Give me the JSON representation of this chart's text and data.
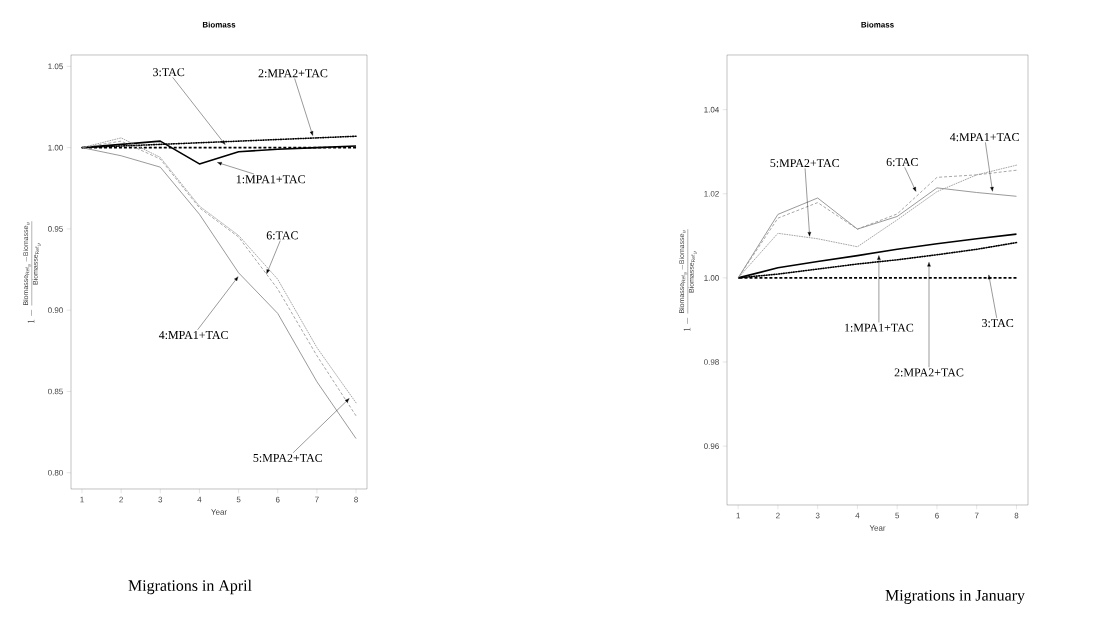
{
  "chart_data": [
    {
      "type": "line",
      "title": "Biomass",
      "xlabel": "Year",
      "ylabel": "1 - \\frac{\\mathrm{Biomasse}_{\\mathrm{Ref}_y} - \\mathrm{Biomasse}_y}{\\mathrm{Biomasse}_{\\mathrm{Ref}_y}}",
      "x": [
        1,
        2,
        3,
        4,
        5,
        6,
        7,
        8
      ],
      "series": [
        {
          "color": "#000000",
          "line_style": "solid",
          "values": [
            1.0,
            1.002,
            1.004,
            0.99,
            0.9975,
            0.999,
            1.0,
            1.001
          ]
        },
        {
          "color": "#000000",
          "line_style": "dotted",
          "values": [
            1.0,
            1.001,
            1.002,
            1.003,
            1.004,
            1.005,
            1.006,
            1.007
          ]
        },
        {
          "color": "#000000",
          "line_style": "dashed",
          "values": [
            1.0,
            1.0,
            1.0,
            1.0,
            1.0,
            1.0,
            1.0,
            1.0
          ]
        },
        {
          "color": "#808080",
          "line_style": "solid",
          "values": [
            1.0,
            0.995,
            0.988,
            0.959,
            0.923,
            0.898,
            0.856,
            0.821
          ]
        },
        {
          "color": "#909090",
          "line_style": "dotted",
          "values": [
            1.0,
            1.006,
            0.994,
            0.964,
            0.946,
            0.919,
            0.877,
            0.843
          ]
        },
        {
          "color": "#909090",
          "line_style": "dashed",
          "values": [
            1.0,
            1.004,
            0.993,
            0.963,
            0.945,
            0.913,
            0.872,
            0.835
          ]
        }
      ],
      "xlim": [
        0.72,
        8.28
      ],
      "ylim": [
        0.79,
        1.057
      ],
      "xticks": [
        1,
        2,
        3,
        4,
        5,
        6,
        7,
        8
      ],
      "yticks": [
        {
          "value": 0.8,
          "label": "0.80"
        },
        0.85,
        {
          "value": 0.9,
          "label": "0.90"
        },
        0.95,
        {
          "value": 1.0,
          "label": "1.00"
        },
        1.05
      ],
      "annotations": [
        {
          "text": "3:TAC",
          "x": 4.67,
          "y": 1.0015
        },
        {
          "text": "2:MPA2+TAC",
          "x": 6.9,
          "y": 1.007
        },
        {
          "text": "1:MPA1+TAC",
          "x": 4.44,
          "y": 0.991
        },
        {
          "text": "6:TAC",
          "x": 5.71,
          "y": 0.922
        },
        {
          "text": "4:MPA1+TAC",
          "x": 5.0,
          "y": 0.921
        },
        {
          "text": "5:MPA2+TAC",
          "x": 7.84,
          "y": 0.846
        },
        "Migrations in April"
      ]
    },
    {
      "type": "line",
      "title": "Biomass",
      "xlabel": "Year",
      "ylabel": "1 - \\frac{\\mathrm{Biomasse}_{\\mathrm{Ref}_y} - \\mathrm{Biomasse}_y}{\\mathrm{Biomasse}_{\\mathrm{Ref}_y}}",
      "x": [
        1,
        2,
        3,
        4,
        5,
        6,
        7,
        8
      ],
      "series": [
        {
          "color": "#000000",
          "line_style": "solid",
          "values": [
            1.0,
            1.0024,
            1.0039,
            1.0053,
            1.0068,
            1.0081,
            1.0093,
            1.0104
          ]
        },
        {
          "color": "#000000",
          "line_style": "dotted",
          "values": [
            1.0,
            1.0009,
            1.0021,
            1.0033,
            1.0043,
            1.0055,
            1.0068,
            1.0084
          ]
        },
        {
          "color": "#000000",
          "line_style": "dashed",
          "values": [
            1.0,
            1.0,
            1.0,
            1.0,
            1.0,
            1.0,
            1.0,
            1.0
          ]
        },
        {
          "color": "#808080",
          "line_style": "solid",
          "values": [
            1.0,
            1.0151,
            1.019,
            1.0116,
            1.0146,
            1.0214,
            1.0203,
            1.0194
          ]
        },
        {
          "color": "#909090",
          "line_style": "dotted",
          "values": [
            1.0,
            1.0106,
            1.0093,
            1.0074,
            1.0138,
            1.0205,
            1.0245,
            1.0268
          ]
        },
        {
          "color": "#909090",
          "line_style": "dashed",
          "values": [
            1.0,
            1.0142,
            1.0179,
            1.0116,
            1.0152,
            1.0239,
            1.0245,
            1.0256
          ]
        }
      ],
      "xlim": [
        0.72,
        8.29
      ],
      "ylim": [
        0.946,
        1.053
      ],
      "xticks": [
        1,
        2,
        3,
        4,
        5,
        6,
        7,
        8
      ],
      "yticks": [
        0.96,
        0.98,
        {
          "value": 1.0,
          "label": "1.00"
        },
        1.02,
        1.04
      ],
      "annotations": [
        {
          "text": "5:MPA2+TAC",
          "x": 2.8,
          "y": 1.0097
        },
        {
          "text": "6:TAC",
          "x": 5.48,
          "y": 1.0204
        },
        {
          "text": "4:MPA1+TAC",
          "x": 7.4,
          "y": 1.0204
        },
        {
          "text": "1:MPA1+TAC",
          "x": 4.54,
          "y": 1.0055
        },
        {
          "text": "2:MPA2+TAC",
          "x": 5.8,
          "y": 1.0039
        },
        {
          "text": "3:TAC",
          "x": 7.3,
          "y": 1.0009
        },
        "Migrations in January"
      ]
    }
  ]
}
